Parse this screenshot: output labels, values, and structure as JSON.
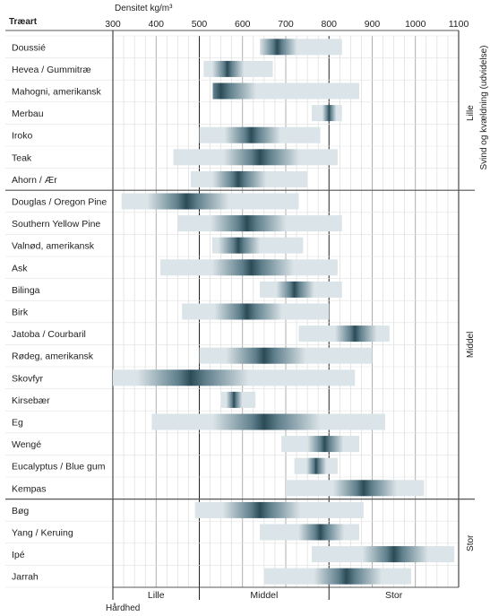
{
  "chart_data": {
    "type": "range-bar",
    "title": "Densitet kg/m³",
    "xlabel": "Densitet kg/m³",
    "xlim": [
      300,
      1100
    ],
    "xticks": [
      300,
      400,
      500,
      600,
      700,
      800,
      900,
      1000,
      1100
    ],
    "category_header": "Træart",
    "hardness_label": "Hårdhed",
    "hardness_zones": [
      {
        "label": "Lille",
        "from": 300,
        "to": 500
      },
      {
        "label": "Middel",
        "from": 500,
        "to": 800
      },
      {
        "label": "Stor",
        "from": 800,
        "to": 1100
      }
    ],
    "shrinkage_axis_label": "Svind og kvældning (udvidelse)",
    "shrinkage_groups": [
      {
        "label": "Lille",
        "species": [
          "Doussié",
          "Hevea / Gummitræ",
          "Mahogni, amerikansk",
          "Merbau",
          "Iroko",
          "Teak",
          "Ahorn / Ær"
        ]
      },
      {
        "label": "Middel",
        "species": [
          "Douglas / Oregon Pine",
          "Southern Yellow Pine",
          "Valnød, amerikansk",
          "Ask",
          "Bilinga",
          "Birk",
          "Jatoba / Courbaril",
          "Rødeg, amerikansk",
          "Skovfyr",
          "Kirsebær",
          "Eg",
          "Wengé",
          "Eucalyptus / Blue gum",
          "Kempas"
        ]
      },
      {
        "label": "Stor",
        "species": [
          "Bøg",
          "Yang / Keruing",
          "Ipé",
          "Jarrah"
        ]
      }
    ],
    "series": [
      {
        "name": "Doussié",
        "min": 640,
        "max": 830,
        "typical": 680
      },
      {
        "name": "Hevea / Gummitræ",
        "min": 510,
        "max": 670,
        "typical": 565
      },
      {
        "name": "Mahogni, amerikansk",
        "min": 530,
        "max": 870,
        "typical": 550
      },
      {
        "name": "Merbau",
        "min": 760,
        "max": 830,
        "typical": 800
      },
      {
        "name": "Iroko",
        "min": 500,
        "max": 780,
        "typical": 620
      },
      {
        "name": "Teak",
        "min": 440,
        "max": 820,
        "typical": 640
      },
      {
        "name": "Ahorn / Ær",
        "min": 480,
        "max": 750,
        "typical": 590
      },
      {
        "name": "Douglas / Oregon Pine",
        "min": 320,
        "max": 730,
        "typical": 470
      },
      {
        "name": "Southern Yellow Pine",
        "min": 450,
        "max": 830,
        "typical": 610
      },
      {
        "name": "Valnød, amerikansk",
        "min": 530,
        "max": 740,
        "typical": 590
      },
      {
        "name": "Ask",
        "min": 410,
        "max": 820,
        "typical": 620
      },
      {
        "name": "Bilinga",
        "min": 640,
        "max": 830,
        "typical": 720
      },
      {
        "name": "Birk",
        "min": 460,
        "max": 800,
        "typical": 610
      },
      {
        "name": "Jatoba / Courbaril",
        "min": 730,
        "max": 940,
        "typical": 860
      },
      {
        "name": "Rødeg, amerikansk",
        "min": 500,
        "max": 900,
        "typical": 650
      },
      {
        "name": "Skovfyr",
        "min": 300,
        "max": 860,
        "typical": 480
      },
      {
        "name": "Kirsebær",
        "min": 550,
        "max": 630,
        "typical": 580
      },
      {
        "name": "Eg",
        "min": 390,
        "max": 930,
        "typical": 650
      },
      {
        "name": "Wengé",
        "min": 690,
        "max": 870,
        "typical": 790
      },
      {
        "name": "Eucalyptus / Blue gum",
        "min": 720,
        "max": 820,
        "typical": 770
      },
      {
        "name": "Kempas",
        "min": 700,
        "max": 1020,
        "typical": 880
      },
      {
        "name": "Bøg",
        "min": 490,
        "max": 880,
        "typical": 640
      },
      {
        "name": "Yang / Keruing",
        "min": 640,
        "max": 870,
        "typical": 780
      },
      {
        "name": "Ipé",
        "min": 760,
        "max": 1090,
        "typical": 950
      },
      {
        "name": "Jarrah",
        "min": 650,
        "max": 990,
        "typical": 840
      }
    ],
    "colors": {
      "bar_light": "#dbe4e8",
      "bar_dark": "#2b4b57",
      "grid": "#bfbfbf",
      "axis": "#222222",
      "separator": "#555555"
    }
  }
}
